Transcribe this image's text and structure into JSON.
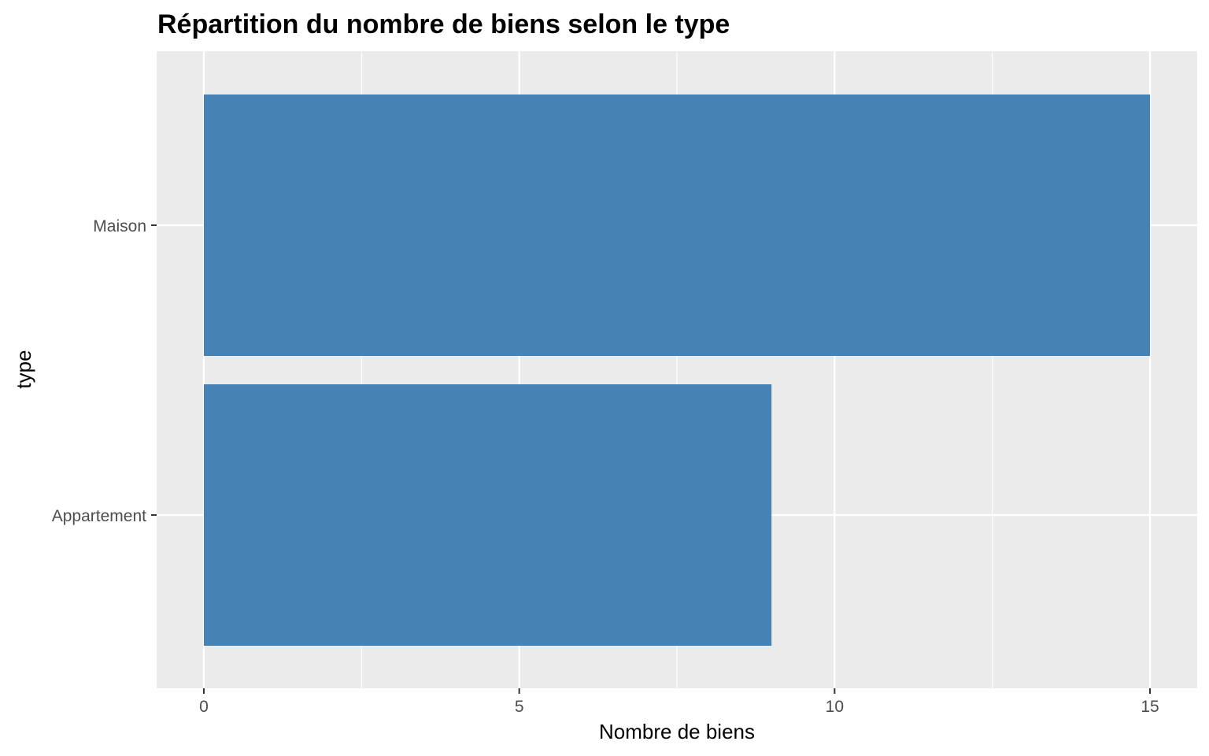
{
  "chart_data": {
    "type": "bar",
    "orientation": "horizontal",
    "title": "Répartition du nombre de biens selon le type",
    "xlabel": "Nombre de biens",
    "ylabel": "type",
    "categories": [
      "Maison",
      "Appartement"
    ],
    "values": [
      15,
      9
    ],
    "xlim": [
      0,
      15
    ],
    "xticks": [
      0,
      5,
      10,
      15
    ],
    "grid": true,
    "legend": "none",
    "colors": {
      "bar": "#4682b4",
      "panel": "#ebebeb",
      "grid": "#ffffff"
    }
  }
}
